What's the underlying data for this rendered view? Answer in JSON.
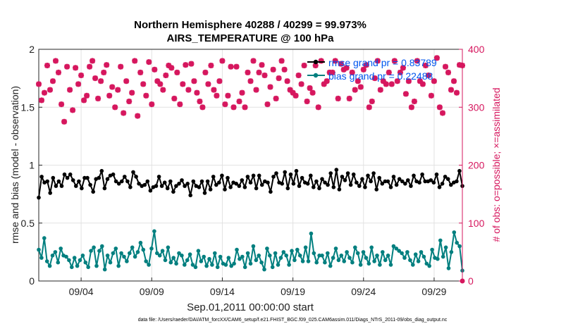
{
  "title_line1": "Northern Hemisphere 40288 / 40299 = 99.973%",
  "title_line2": "AIRS_TEMPERATURE @ 100 hPa",
  "footer": "data file: /Users/raeder/DAI/ATM_forcXX/CAM6_setup/f.e21.FHIST_BGC.f09_025.CAM6assim.011/Diags_NTrS_2011-09/obs_diag_output.nc",
  "colors": {
    "rmse": "#000000",
    "bias": "#007f7f",
    "obs": "#d6175e",
    "legend_text": "#0055ee"
  },
  "chart_data": {
    "type": "line",
    "xlabel": "Sep.01,2011 00:00:00 start",
    "ylabel_left": "rmse and bias (model - observation)",
    "ylabel_right": "# of obs: o=possible; ×=assimilated",
    "x_tick_labels": [
      "09/04",
      "09/09",
      "09/14",
      "09/19",
      "09/24",
      "09/29"
    ],
    "x_tick_days": [
      4,
      9,
      14,
      19,
      24,
      29
    ],
    "xlim_days": [
      1,
      31
    ],
    "ylim_left": [
      0,
      2
    ],
    "yticks_left": [
      0,
      0.5,
      1,
      1.5,
      2
    ],
    "ylim_right": [
      0,
      400
    ],
    "yticks_right": [
      0,
      100,
      200,
      300,
      400
    ],
    "grid": true,
    "legend_position": "top-right",
    "series": [
      {
        "name": "rmse grand pr = 0.83789",
        "axis": "left",
        "values": [
          0.72,
          0.9,
          0.85,
          0.86,
          0.76,
          0.89,
          0.82,
          0.86,
          0.82,
          0.92,
          0.89,
          0.92,
          0.87,
          0.82,
          0.86,
          0.8,
          0.89,
          0.89,
          0.83,
          0.77,
          0.88,
          0.89,
          0.95,
          0.8,
          0.88,
          0.91,
          0.92,
          0.86,
          0.84,
          0.86,
          0.9,
          0.86,
          0.81,
          0.94,
          0.9,
          0.84,
          0.82,
          0.83,
          0.86,
          0.78,
          0.81,
          0.82,
          0.9,
          0.82,
          0.85,
          0.8,
          0.86,
          0.77,
          0.82,
          0.84,
          0.87,
          0.82,
          0.84,
          0.74,
          0.86,
          0.82,
          0.81,
          0.86,
          0.76,
          0.86,
          0.79,
          0.9,
          0.83,
          0.85,
          0.91,
          0.79,
          0.89,
          0.81,
          0.85,
          0.84,
          0.82,
          0.87,
          0.81,
          0.9,
          0.85,
          0.91,
          0.8,
          0.91,
          0.83,
          0.86,
          0.85,
          0.77,
          0.9,
          0.93,
          0.85,
          0.84,
          0.94,
          0.8,
          0.92,
          0.84,
          0.95,
          0.82,
          0.89,
          0.85,
          0.84,
          0.91,
          0.81,
          0.86,
          0.8,
          0.88,
          0.85,
          0.83,
          0.93,
          0.81,
          0.96,
          0.79,
          0.9,
          0.87,
          0.93,
          0.83,
          0.92,
          0.85,
          0.82,
          0.88,
          0.81,
          0.91,
          0.86,
          0.93,
          0.79,
          0.89,
          0.84,
          0.86,
          0.86,
          0.81,
          0.9,
          0.83,
          0.88,
          0.86,
          0.84,
          0.87,
          0.82,
          0.91,
          0.86,
          0.85,
          0.92,
          0.86,
          0.86,
          0.87,
          0.85,
          0.92,
          0.81,
          0.84,
          0.9,
          0.88,
          0.83,
          0.85,
          0.86,
          0.95,
          0.82
        ]
      },
      {
        "name": "bias grand pr = 0.22488",
        "axis": "left",
        "values": [
          0.27,
          0.2,
          0.37,
          0.17,
          0.13,
          0.22,
          0.25,
          0.16,
          0.28,
          0.22,
          0.21,
          0.18,
          0.12,
          0.2,
          0.13,
          0.18,
          0.22,
          0.16,
          0.12,
          0.26,
          0.29,
          0.13,
          0.26,
          0.3,
          0.1,
          0.22,
          0.16,
          0.24,
          0.28,
          0.13,
          0.24,
          0.21,
          0.17,
          0.24,
          0.29,
          0.21,
          0.25,
          0.33,
          0.27,
          0.17,
          0.14,
          0.28,
          0.43,
          0.24,
          0.22,
          0.26,
          0.18,
          0.29,
          0.16,
          0.2,
          0.15,
          0.24,
          0.22,
          0.14,
          0.18,
          0.23,
          0.14,
          0.12,
          0.26,
          0.17,
          0.21,
          0.13,
          0.19,
          0.14,
          0.24,
          0.12,
          0.21,
          0.15,
          0.14,
          0.2,
          0.13,
          0.15,
          0.27,
          0.19,
          0.21,
          0.12,
          0.24,
          0.15,
          0.3,
          0.18,
          0.22,
          0.16,
          0.1,
          0.28,
          0.22,
          0.12,
          0.24,
          0.14,
          0.2,
          0.25,
          0.22,
          0.14,
          0.26,
          0.18,
          0.27,
          0.22,
          0.17,
          0.29,
          0.17,
          0.41,
          0.24,
          0.16,
          0.22,
          0.22,
          0.16,
          0.24,
          0.13,
          0.2,
          0.28,
          0.18,
          0.22,
          0.17,
          0.25,
          0.2,
          0.16,
          0.29,
          0.24,
          0.14,
          0.25,
          0.2,
          0.15,
          0.29,
          0.17,
          0.22,
          0.14,
          0.25,
          0.18,
          0.22,
          0.14,
          0.3,
          0.28,
          0.26,
          0.24,
          0.2,
          0.25,
          0.18,
          0.14,
          0.23,
          0.17,
          0.25,
          0.21,
          0.15,
          0.13,
          0.27,
          0.2,
          0.19,
          0.35,
          0.21,
          0.29,
          0.11,
          0.25,
          0.42,
          0.33,
          0.3,
          0.09
        ]
      },
      {
        "name": "# of obs",
        "axis": "right",
        "marker_only": true,
        "values": [
          340,
          312,
          325,
          372,
          330,
          345,
          380,
          360,
          305,
          275,
          370,
          330,
          295,
          368,
          340,
          355,
          312,
          320,
          370,
          380,
          350,
          315,
          345,
          360,
          373,
          320,
          335,
          300,
          330,
          370,
          290,
          345,
          310,
          325,
          380,
          285,
          360,
          340,
          320,
          378,
          305,
          365,
          345,
          340,
          330,
          355,
          372,
          368,
          315,
          360,
          305,
          340,
          373,
          330,
          375,
          345,
          325,
          310,
          300,
          360,
          340,
          372,
          330,
          320,
          345,
          380,
          305,
          320,
          370,
          300,
          370,
          310,
          325,
          300,
          360,
          345,
          380,
          330,
          360,
          373,
          355,
          305,
          335,
          365,
          315,
          350,
          380,
          365,
          345,
          330,
          325,
          320,
          355,
          340,
          372,
          310,
          333,
          325,
          372,
          300,
          380,
          340,
          345,
          360,
          360,
          380,
          315,
          375,
          365,
          368,
          315,
          360,
          330,
          345,
          335,
          365,
          373,
          300,
          310,
          350,
          380,
          330,
          345,
          340,
          360,
          340,
          380,
          345,
          360,
          368,
          323,
          345,
          300,
          310,
          380,
          345,
          340,
          372,
          355,
          320,
          345,
          385,
          300,
          290,
          370,
          360,
          330,
          345,
          325,
          373,
          372
        ]
      }
    ]
  }
}
